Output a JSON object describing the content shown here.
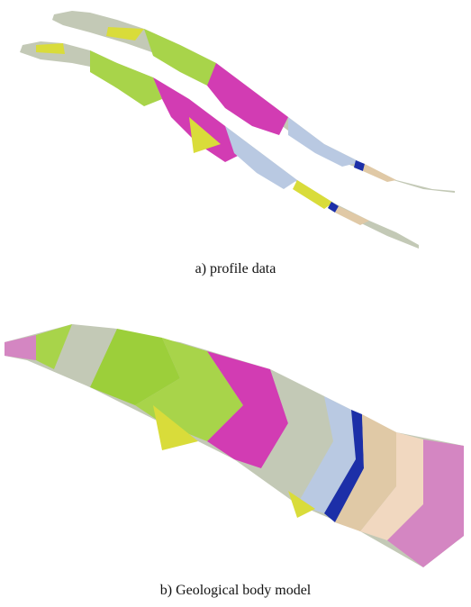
{
  "figures": [
    {
      "caption": "a) profile data",
      "colors": [
        "#d9dc3a",
        "#a8d44a",
        "#c3c9b6",
        "#e0c9a6",
        "#b9c9e2",
        "#d23cb3",
        "#1c2fa8",
        "#8fd3b6",
        "#f1d8c0",
        "#9ccf3a",
        "#e6e6e6",
        "#c7a4cf"
      ]
    },
    {
      "caption": "b) Geological body model",
      "colors": [
        "#d9dc3a",
        "#a8d44a",
        "#c3c9b6",
        "#e0c9a6",
        "#b9c9e2",
        "#d23cb3",
        "#1c2fa8",
        "#8fd3b6",
        "#f1d8c0",
        "#9ccf3a",
        "#e6e6e6",
        "#d486c2"
      ]
    }
  ]
}
